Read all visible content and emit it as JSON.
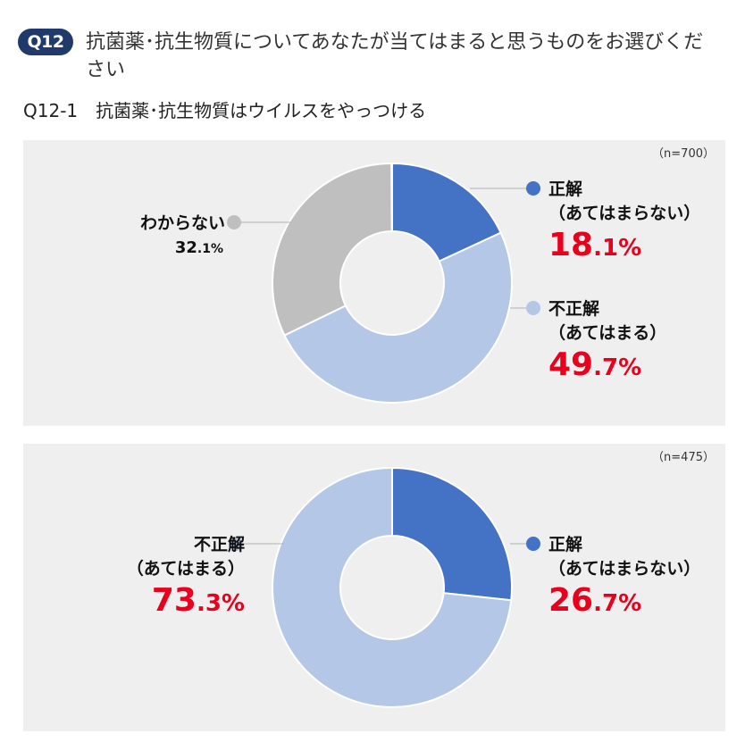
{
  "header": {
    "badge": "Q12",
    "title": "抗菌薬･抗生物質についてあなたが当てはまると思うものをお選びください"
  },
  "subquestion": "Q12-1　抗菌薬･抗生物質はウイルスをやっつける",
  "colors": {
    "correct": "#4472c4",
    "incorrect": "#b4c7e7",
    "unknown": "#bfbfbf",
    "highlight": "#e8001c",
    "panel_bg": "#efefef"
  },
  "chart_data": [
    {
      "type": "pie",
      "donut": true,
      "n_label": "（n=700）",
      "slices": [
        {
          "key": "correct",
          "label": "正解",
          "sublabel": "（あてはまらない）",
          "value": 18.1,
          "int": "18",
          "frac": ".1%"
        },
        {
          "key": "incorrect",
          "label": "不正解",
          "sublabel": "（あてはまる）",
          "value": 49.7,
          "int": "49",
          "frac": ".7%"
        },
        {
          "key": "unknown",
          "label": "わからない",
          "value": 32.1,
          "int": "32",
          "frac": ".1%"
        }
      ]
    },
    {
      "type": "pie",
      "donut": true,
      "n_label": "（n=475）",
      "slices": [
        {
          "key": "correct",
          "label": "正解",
          "sublabel": "（あてはまらない）",
          "value": 26.7,
          "int": "26",
          "frac": ".7%"
        },
        {
          "key": "incorrect",
          "label": "不正解",
          "sublabel": "（あてはまる）",
          "value": 73.3,
          "int": "73",
          "frac": ".3%"
        }
      ]
    }
  ]
}
